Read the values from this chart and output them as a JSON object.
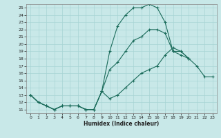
{
  "xlabel": "Humidex (Indice chaleur)",
  "bg_color": "#c8e8e8",
  "line_color": "#1a6b5a",
  "grid_color": "#a8d4d4",
  "xlim": [
    -0.5,
    23.5
  ],
  "ylim": [
    10.5,
    25.5
  ],
  "xticks": [
    0,
    1,
    2,
    3,
    4,
    5,
    6,
    7,
    8,
    9,
    10,
    11,
    12,
    13,
    14,
    15,
    16,
    17,
    18,
    19,
    20,
    21,
    22,
    23
  ],
  "yticks": [
    11,
    12,
    13,
    14,
    15,
    16,
    17,
    18,
    19,
    20,
    21,
    22,
    23,
    24,
    25
  ],
  "line1_x": [
    0,
    1,
    2,
    3,
    4,
    5,
    6,
    7,
    8,
    9,
    10,
    11,
    12,
    13,
    14,
    15,
    16,
    17,
    18,
    19,
    20
  ],
  "line1_y": [
    13.0,
    12.0,
    11.5,
    11.0,
    11.5,
    11.5,
    11.5,
    11.0,
    11.0,
    13.5,
    19.0,
    22.5,
    24.0,
    25.0,
    25.0,
    25.5,
    25.0,
    23.0,
    19.0,
    18.5,
    18.0
  ],
  "line2_x": [
    0,
    1,
    2,
    3,
    4,
    5,
    6,
    7,
    8,
    9,
    10,
    11,
    12,
    13,
    14,
    15,
    16,
    17,
    18,
    19,
    20
  ],
  "line2_y": [
    13.0,
    12.0,
    11.5,
    11.0,
    11.5,
    11.5,
    11.5,
    11.0,
    11.0,
    13.5,
    16.5,
    17.5,
    19.0,
    20.5,
    21.0,
    22.0,
    22.0,
    21.5,
    19.0,
    19.0,
    18.0
  ],
  "line3_x": [
    0,
    1,
    2,
    3,
    4,
    5,
    6,
    7,
    8,
    9,
    10,
    11,
    12,
    13,
    14,
    15,
    16,
    17,
    18,
    19,
    20,
    21,
    22,
    23
  ],
  "line3_y": [
    13.0,
    12.0,
    11.5,
    11.0,
    11.5,
    11.5,
    11.5,
    11.0,
    11.0,
    13.5,
    12.5,
    13.0,
    14.0,
    15.0,
    16.0,
    16.5,
    17.0,
    18.5,
    19.5,
    19.0,
    18.0,
    17.0,
    15.5,
    15.5
  ]
}
